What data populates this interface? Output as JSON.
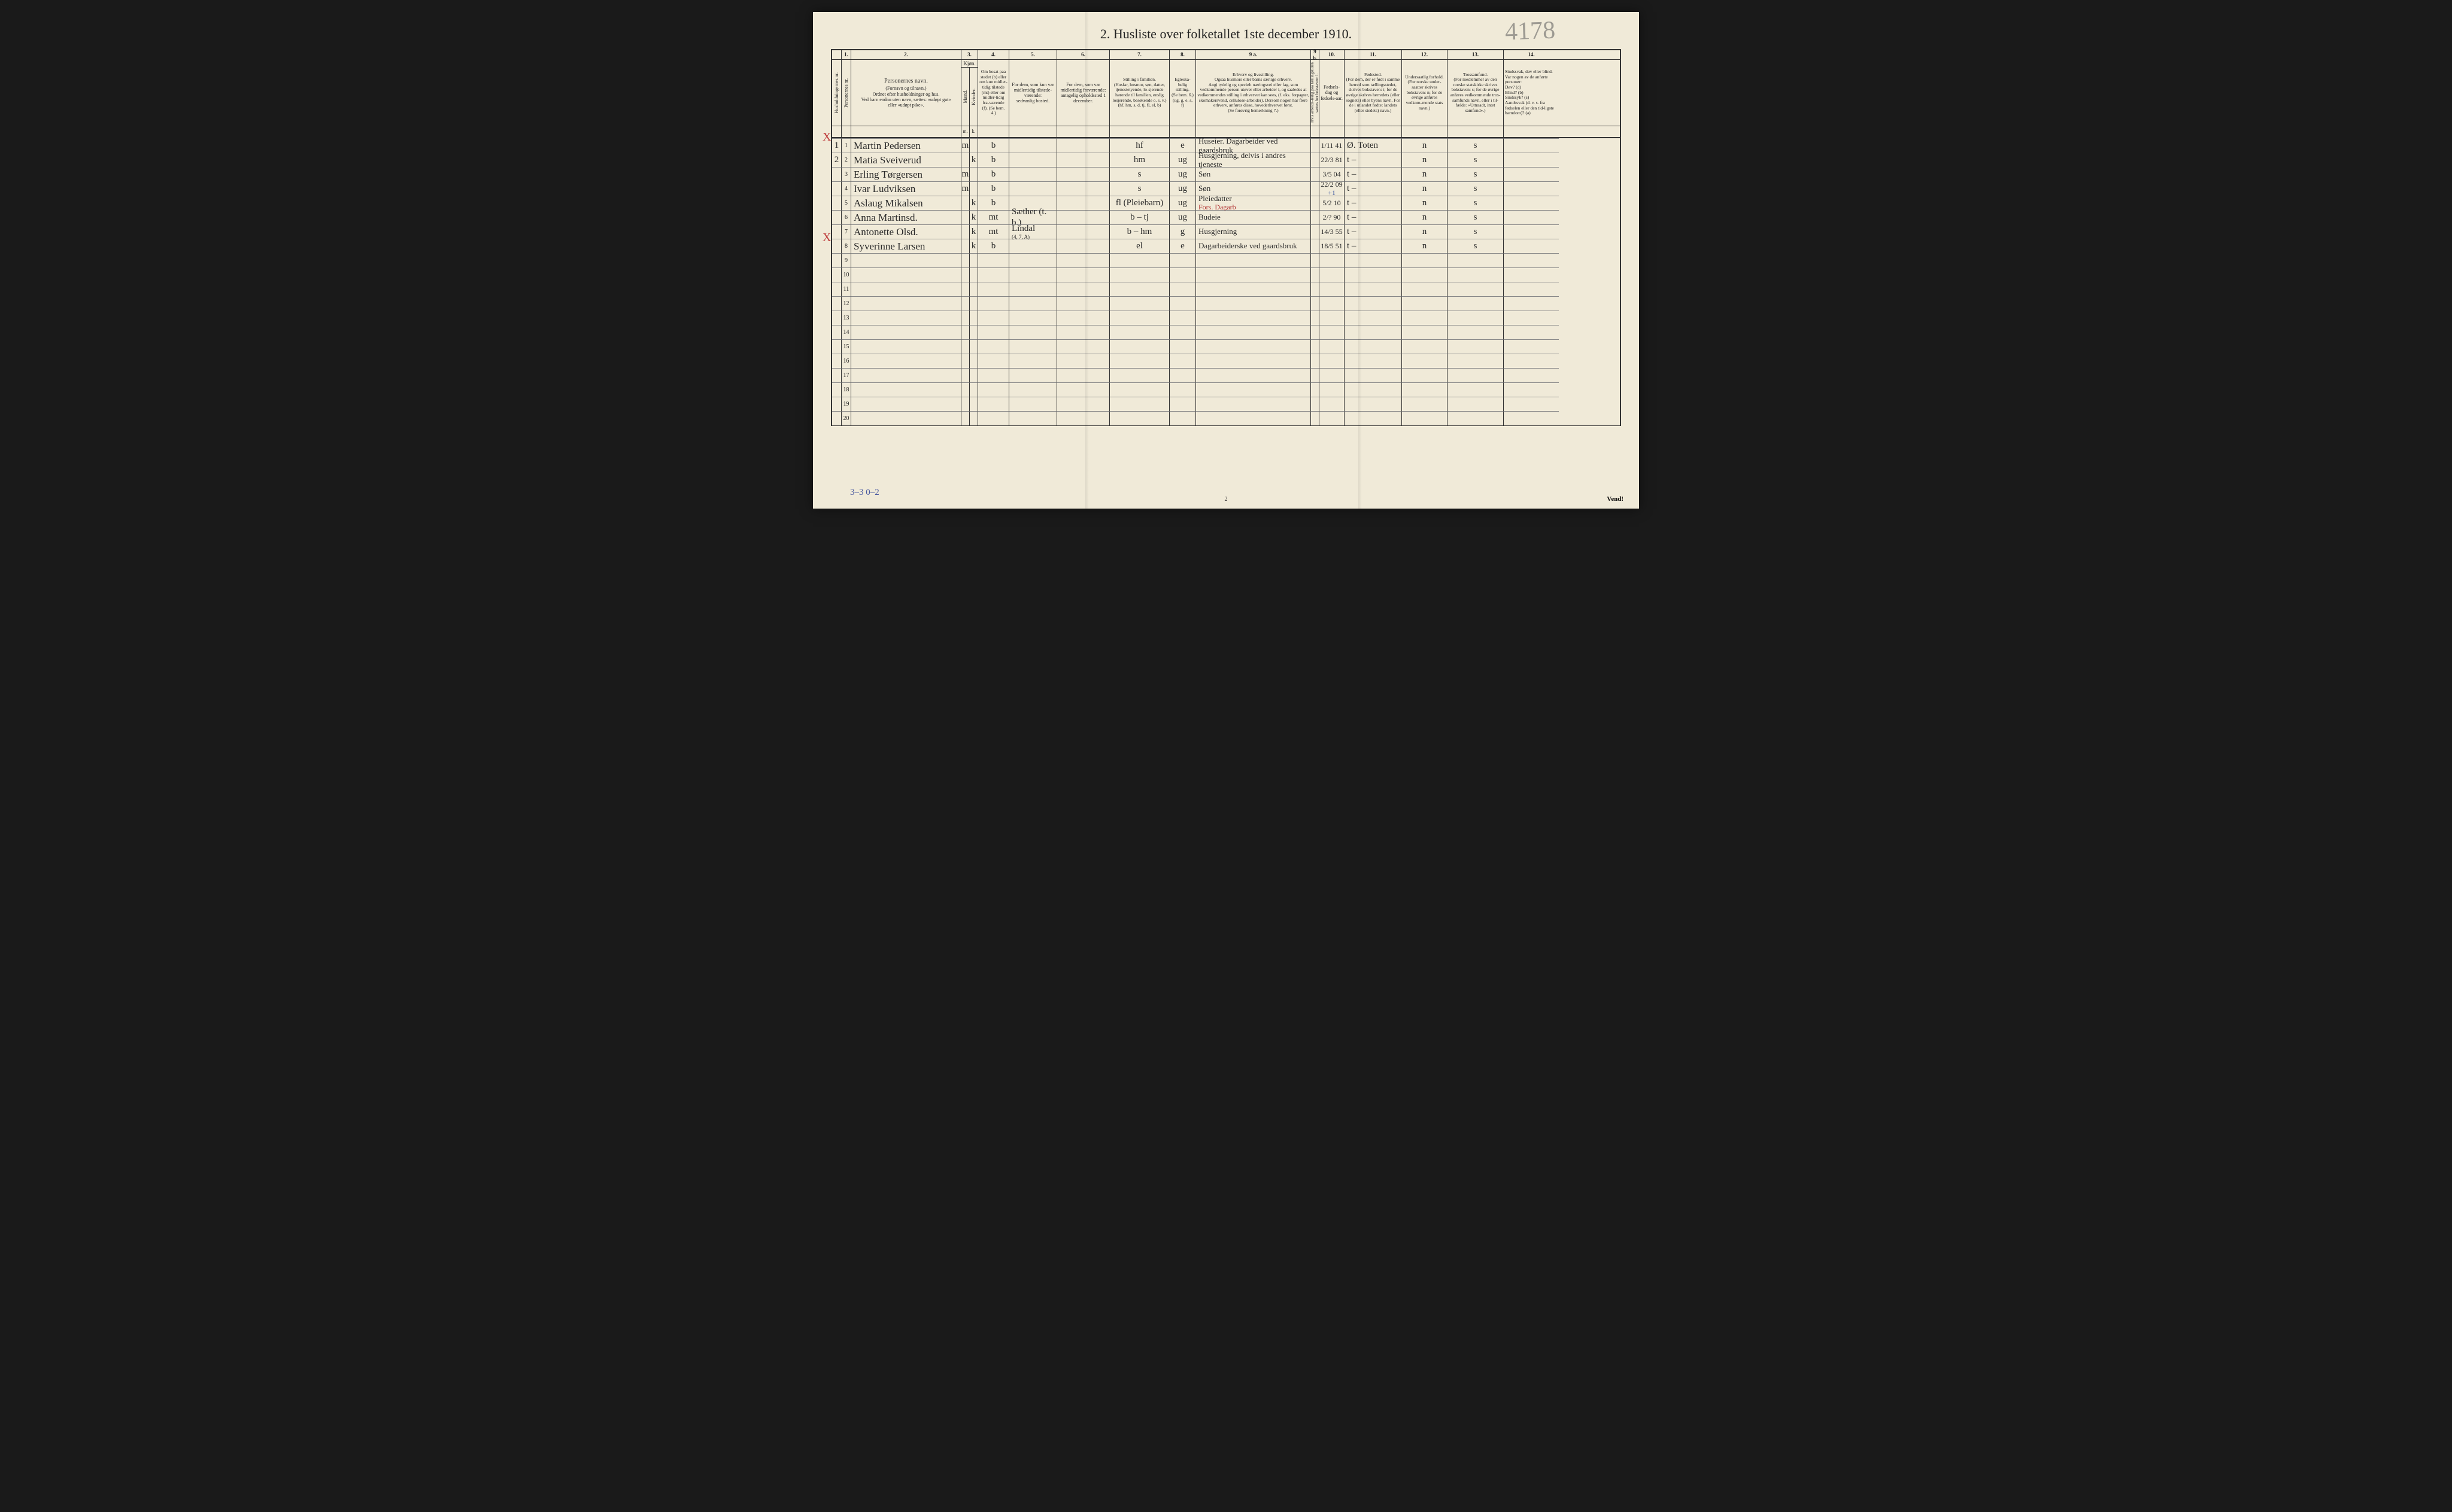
{
  "title": "2.  Husliste over folketallet 1ste december 1910.",
  "handwritten_page": "4178",
  "footer_note": "3–3  0–2",
  "page_num": "2",
  "vend": "Vend!",
  "colnums": [
    "",
    "1.",
    "2.",
    "3.",
    "4.",
    "5.",
    "6.",
    "7.",
    "8.",
    "9 a.",
    "9 b.",
    "10.",
    "11.",
    "12.",
    "13.",
    "14."
  ],
  "headers": {
    "c0": "Husholdningernes nr.",
    "c1": "Personernes nr.",
    "c2_t": "Personernes navn.",
    "c2_b": "(Fornavn og tilnavn.)\nOrdnet efter husholdninger og hus.\nVed barn endnu uten navn, sættes: «udøpt gut»\neller «udøpt pike».",
    "c3": "Kjøn.",
    "c3a": "Mænd.",
    "c3b": "Kvinder.",
    "c4": "Om bosat paa stedet (b) eller om kun midler-tidig tilstede (mt) eller om midler-tidig fra-værende (f). (Se bem. 4.)",
    "c5": "For dem, som kun var midlertidig tilstede-værende:\nsedvanlig bosted.",
    "c6": "For dem, som var midlertidig fraværende:\nantagelig opholdssted 1 december.",
    "c7": "Stilling i familien.\n(Husfar, husmor, søn, datter, tjenestetyende, lo-sjerende hørende til familien, enslig losjerende, besøkende o. s. v.)\n(hf, hm, s, d, tj, fl, el, b)",
    "c8": "Egteska-belig stilling.\n(Se bem. 6.)\n(ug, g, e, s, f)",
    "c9a": "Erhverv og livsstilling.\nOgsaa husmors eller barns særlige erhverv.\nAngi tydelig og specielt næringsvei eller fag, som vedkommende person utøver eller arbeider i, og saaledes at vedkommendes stilling i erhvervet kan sees, (f. eks. forpagter, skomakersvend, cellulose-arbeider). Dersom nogen har flere erhverv, anføres disse, hovederhvervet først.\n(Se forøvrig bemerkning 7.)",
    "c9b": "Hvis arbeids-ledig paa tællingstiden sættes her bokstaven: l.",
    "c10": "Fødsels-dag og fødsels-aar.",
    "c11": "Fødested.\n(For dem, der er født i samme herred som tællingsstedet, skrives bokstaven: t; for de øvrige skrives herredets (eller sognets) eller byens navn. For de i utlandet fødte: landets (eller stedets) navn.)",
    "c12": "Undersaatlig forhold.\n(For norske under-saatter skrives bokstaven: n; for de øvrige anføres vedkom-mende stats navn.)",
    "c13": "Trossamfund.\n(For medlemmer av den norske statskirke skrives bokstaven: s; for de øvrige anføres vedkommende tros-samfunds navn, eller i til-fælde: «Uttraadt, intet samfund».)",
    "c14": "Sindssvak, døv eller blind.\nVar nogen av de anførte personer:\nDøv?       (d)\nBlind?     (b)\nSindssyk?  (s)\nAandssvak (d. v. s. fra fødselen eller den tid-ligste barndom)? (a)"
  },
  "rows": [
    {
      "h": "1",
      "p": "1",
      "name": "Martin Pedersen",
      "mk": "m",
      "res": "b",
      "c7": "hf",
      "c8": "e",
      "occ": "Huseier. Dagarbeider ved gaardsbruk",
      "dob": "1/11 41",
      "birth": "Ø. Toten",
      "c12": "n",
      "c13": "s",
      "marginX": true,
      "mxY": 198
    },
    {
      "h": "2",
      "p": "2",
      "name": "Matia Sveiverud",
      "mk": "k",
      "res": "b",
      "c7": "hm",
      "c8": "ug",
      "occ": "Husgjerning, delvis i andres tjeneste",
      "dob": "22/3 81",
      "birth": "t    –",
      "c12": "n",
      "c13": "s"
    },
    {
      "h": "",
      "p": "3",
      "name": "Erling Tørgersen",
      "mk": "m",
      "res": "b",
      "c7": "s",
      "c8": "ug",
      "occ": "Søn",
      "dob": "3/5 04",
      "birth": "t    –",
      "c12": "n",
      "c13": "s"
    },
    {
      "h": "",
      "p": "4",
      "name": "Ivar Ludviksen",
      "mk": "m",
      "res": "b",
      "c7": "s",
      "c8": "ug",
      "occ": "Søn",
      "dob": "22/2 09",
      "birth": "t    –",
      "c12": "n",
      "c13": "s",
      "blue": "+1"
    },
    {
      "h": "",
      "p": "5",
      "name": "Aslaug Mikalsen",
      "mk": "k",
      "res": "b",
      "c7": "fl (Pleiebarn)",
      "c8": "ug",
      "occ": "Pleiedatter",
      "occ_red": "Fors. Dagarb",
      "dob": "5/2 10",
      "birth": "t    –",
      "c12": "n",
      "c13": "s"
    },
    {
      "h": "",
      "p": "6",
      "name": "Anna Martinsd.",
      "mk": "k",
      "res": "mt",
      "c5": "Sæther (t. b.)",
      "c7": "b – tj",
      "c8": "ug",
      "occ": "Budeie",
      "dob": "2/? 90",
      "birth": "t    –",
      "c12": "n",
      "c13": "s"
    },
    {
      "h": "",
      "p": "7",
      "name": "Antonette Olsd.",
      "mk": "k",
      "res": "mt",
      "c5": "Lindal",
      "c5_sup": "(4, 7, A)",
      "c7": "b – hm",
      "c8": "g",
      "occ": "Husgjerning",
      "dob": "14/3 55",
      "birth": "t    –",
      "c12": "n",
      "c13": "s"
    },
    {
      "h": "",
      "p": "8",
      "name": "Syverinne Larsen",
      "mk": "k",
      "res": "b",
      "c7": "el",
      "c8": "e",
      "occ": "Dagarbeiderske ved gaardsbruk",
      "dob": "18/5 51",
      "birth": "t    –",
      "c12": "n",
      "c13": "s",
      "marginX": true,
      "mxY": 366
    }
  ],
  "empty_rows": [
    "9",
    "10",
    "11",
    "12",
    "13",
    "14",
    "15",
    "16",
    "17",
    "18",
    "19",
    "20"
  ],
  "sub": {
    "m": "m.",
    "k": "k."
  },
  "colors": {
    "line": "#333333",
    "paper": "#f0ead8",
    "red": "#c04040",
    "blue": "#3a56a0"
  }
}
